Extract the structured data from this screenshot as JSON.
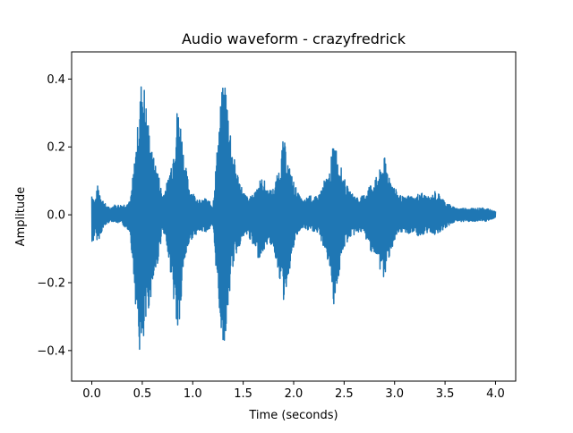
{
  "chart_data": {
    "type": "line",
    "title": "Audio waveform - crazyfredrick",
    "xlabel": "Time (seconds)",
    "ylabel": "Amplitude",
    "xlim": [
      -0.2,
      4.2
    ],
    "ylim": [
      -0.49,
      0.48
    ],
    "xticks": [
      0.0,
      0.5,
      1.0,
      1.5,
      2.0,
      2.5,
      3.0,
      3.5,
      4.0
    ],
    "xtick_labels": [
      "0.0",
      "0.5",
      "1.0",
      "1.5",
      "2.0",
      "2.5",
      "3.0",
      "3.5",
      "4.0"
    ],
    "yticks": [
      -0.4,
      -0.2,
      0.0,
      0.2,
      0.4
    ],
    "ytick_labels": [
      "−0.4",
      "−0.2",
      "0.0",
      "0.2",
      "0.4"
    ],
    "grid": false,
    "legend": "none",
    "series": [
      {
        "color": "#1f77b4",
        "envelope": {
          "t": [
            0.0,
            0.03,
            0.06,
            0.1,
            0.14,
            0.18,
            0.22,
            0.3,
            0.38,
            0.43,
            0.47,
            0.5,
            0.55,
            0.6,
            0.65,
            0.7,
            0.75,
            0.8,
            0.85,
            0.88,
            0.92,
            0.97,
            1.02,
            1.08,
            1.13,
            1.2,
            1.28,
            1.32,
            1.36,
            1.4,
            1.45,
            1.5,
            1.55,
            1.6,
            1.65,
            1.7,
            1.75,
            1.8,
            1.85,
            1.9,
            1.95,
            2.0,
            2.05,
            2.1,
            2.15,
            2.2,
            2.25,
            2.3,
            2.35,
            2.4,
            2.45,
            2.5,
            2.55,
            2.6,
            2.65,
            2.7,
            2.75,
            2.8,
            2.85,
            2.9,
            2.95,
            3.0,
            3.05,
            3.1,
            3.15,
            3.2,
            3.25,
            3.3,
            3.35,
            3.4,
            3.45,
            3.5,
            3.55,
            3.6,
            3.7,
            3.8,
            3.9,
            4.0
          ],
          "upper": [
            0.07,
            0.04,
            0.09,
            0.05,
            0.03,
            0.02,
            0.03,
            0.03,
            0.04,
            0.18,
            0.32,
            0.44,
            0.3,
            0.18,
            0.14,
            0.06,
            0.1,
            0.18,
            0.33,
            0.28,
            0.16,
            0.08,
            0.06,
            0.04,
            0.05,
            0.03,
            0.35,
            0.41,
            0.3,
            0.18,
            0.12,
            0.07,
            0.05,
            0.06,
            0.1,
            0.11,
            0.07,
            0.08,
            0.13,
            0.23,
            0.15,
            0.1,
            0.06,
            0.04,
            0.06,
            0.05,
            0.06,
            0.1,
            0.12,
            0.23,
            0.16,
            0.11,
            0.07,
            0.06,
            0.05,
            0.06,
            0.09,
            0.1,
            0.13,
            0.17,
            0.12,
            0.08,
            0.06,
            0.05,
            0.06,
            0.05,
            0.07,
            0.06,
            0.05,
            0.07,
            0.06,
            0.04,
            0.03,
            0.02,
            0.02,
            0.02,
            0.02,
            0.01
          ],
          "lower": [
            -0.1,
            -0.06,
            -0.08,
            -0.05,
            -0.03,
            -0.02,
            -0.02,
            -0.03,
            -0.05,
            -0.25,
            -0.41,
            -0.44,
            -0.3,
            -0.22,
            -0.15,
            -0.05,
            -0.1,
            -0.22,
            -0.37,
            -0.3,
            -0.14,
            -0.08,
            -0.06,
            -0.05,
            -0.05,
            -0.04,
            -0.35,
            -0.39,
            -0.25,
            -0.15,
            -0.1,
            -0.07,
            -0.06,
            -0.1,
            -0.13,
            -0.11,
            -0.08,
            -0.1,
            -0.17,
            -0.26,
            -0.18,
            -0.1,
            -0.05,
            -0.04,
            -0.05,
            -0.05,
            -0.06,
            -0.1,
            -0.15,
            -0.27,
            -0.18,
            -0.1,
            -0.07,
            -0.06,
            -0.05,
            -0.06,
            -0.1,
            -0.12,
            -0.16,
            -0.2,
            -0.12,
            -0.08,
            -0.06,
            -0.05,
            -0.06,
            -0.05,
            -0.07,
            -0.06,
            -0.05,
            -0.06,
            -0.05,
            -0.04,
            -0.03,
            -0.02,
            -0.02,
            -0.02,
            -0.02,
            -0.01
          ]
        }
      }
    ]
  }
}
